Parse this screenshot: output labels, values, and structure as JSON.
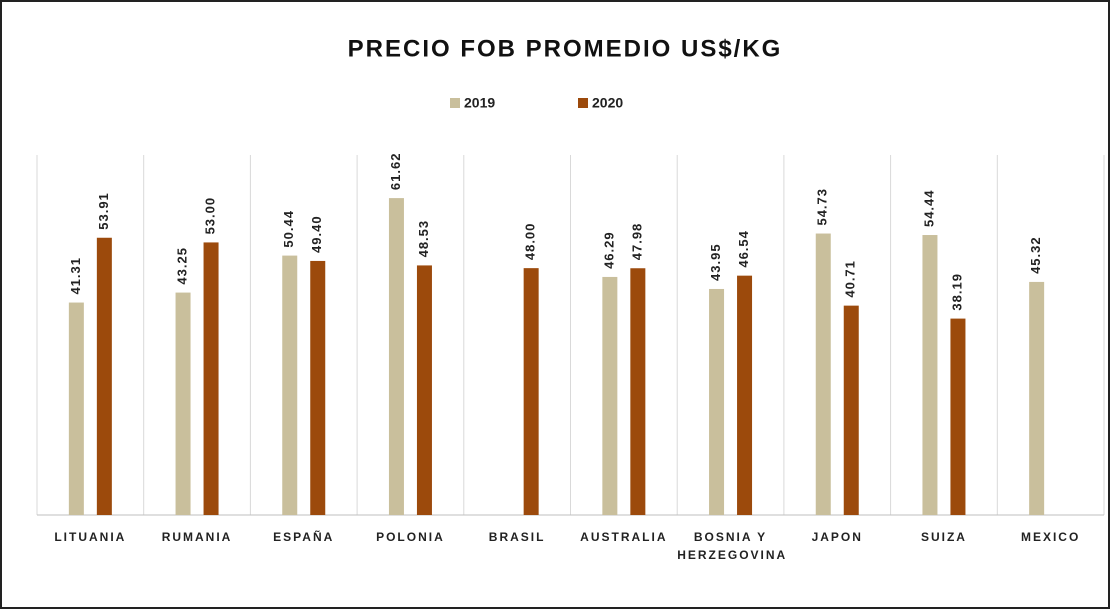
{
  "chart_data": {
    "type": "bar",
    "title": "PRECIO FOB PROMEDIO US$/KG",
    "categories": [
      "LITUANIA",
      "RUMANIA",
      "ESPAÑA",
      "POLONIA",
      "BRASIL",
      "AUSTRALIA",
      "BOSNIA Y HERZEGOVINA",
      "JAPON",
      "SUIZA",
      "MEXICO"
    ],
    "series": [
      {
        "name": "2019",
        "color": "#c9bf9c",
        "values": [
          41.31,
          43.25,
          50.44,
          61.62,
          null,
          46.29,
          43.95,
          54.73,
          54.44,
          45.32
        ],
        "value_labels": [
          "41.31",
          "43.25",
          "50.44",
          "61.62",
          null,
          "46.29",
          "43.95",
          "54.73",
          "54.44",
          "45.32"
        ]
      },
      {
        "name": "2020",
        "color": "#9c4a0c",
        "values": [
          53.91,
          53.0,
          49.4,
          48.53,
          48.0,
          47.98,
          46.54,
          40.71,
          38.19,
          null
        ],
        "value_labels": [
          "53.91",
          "53.00",
          "49.40",
          "48.53",
          "48.00",
          "47.98",
          "46.54",
          "40.71",
          "38.19",
          null
        ]
      }
    ],
    "ylim": [
      0,
      70
    ],
    "legend": "top"
  }
}
